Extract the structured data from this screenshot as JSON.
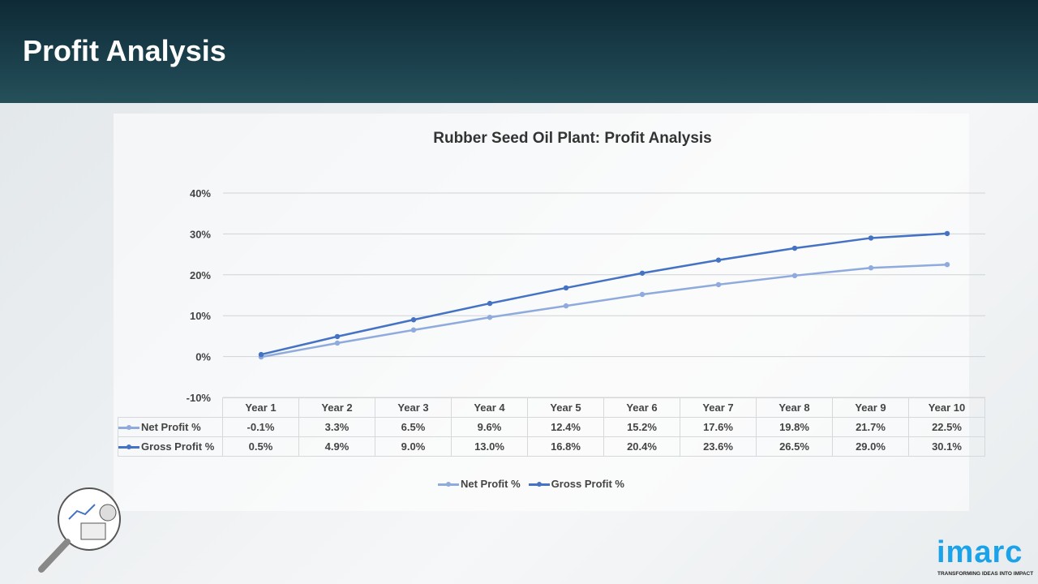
{
  "header": {
    "title": "Profit Analysis"
  },
  "chart_data": {
    "type": "line",
    "title": "Rubber Seed Oil Plant: Profit Analysis",
    "categories": [
      "Year 1",
      "Year 2",
      "Year 3",
      "Year 4",
      "Year 5",
      "Year 6",
      "Year 7",
      "Year 8",
      "Year 9",
      "Year 10"
    ],
    "ylim": [
      -10,
      40
    ],
    "yticks": [
      "40%",
      "30%",
      "20%",
      "10%",
      "0%",
      "-10%"
    ],
    "grid": true,
    "legend": "bottom",
    "series": [
      {
        "name": "Net Profit %",
        "color": "#8faadc",
        "values": [
          -0.1,
          3.3,
          6.5,
          9.6,
          12.4,
          15.2,
          17.6,
          19.8,
          21.7,
          22.5
        ],
        "labels": [
          "-0.1%",
          "3.3%",
          "6.5%",
          "9.6%",
          "12.4%",
          "15.2%",
          "17.6%",
          "19.8%",
          "21.7%",
          "22.5%"
        ]
      },
      {
        "name": "Gross Profit %",
        "color": "#4472c4",
        "values": [
          0.5,
          4.9,
          9.0,
          13.0,
          16.8,
          20.4,
          23.6,
          26.5,
          29.0,
          30.1
        ],
        "labels": [
          "0.5%",
          "4.9%",
          "9.0%",
          "13.0%",
          "16.8%",
          "20.4%",
          "23.6%",
          "26.5%",
          "29.0%",
          "30.1%"
        ]
      }
    ]
  },
  "logo": {
    "name": "imarc",
    "tagline": "TRANSFORMING IDEAS INTO IMPACT",
    "color": "#1aa3e8"
  }
}
